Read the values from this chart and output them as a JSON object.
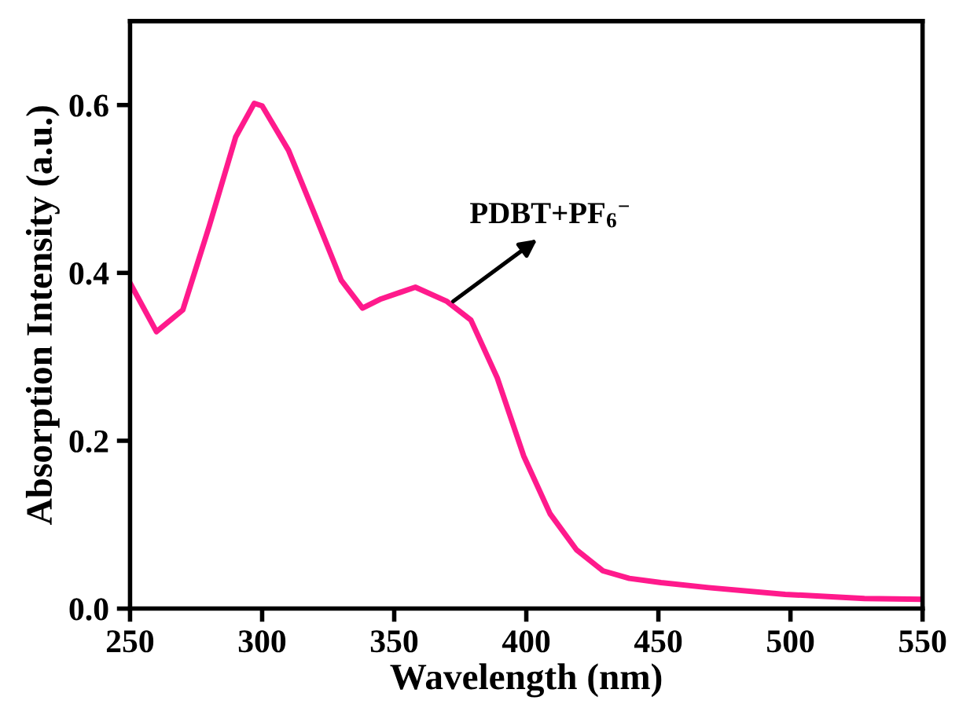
{
  "chart_data": {
    "type": "line",
    "xlabel": "Wavelength (nm)",
    "ylabel": "Absorption Intensity (a.u.)",
    "x": [
      250,
      260,
      270,
      280,
      290,
      297,
      300,
      310,
      320,
      330,
      338,
      345,
      358,
      370,
      379,
      389,
      399,
      409,
      419,
      429,
      439,
      451,
      469,
      498,
      528,
      550
    ],
    "series": [
      {
        "color": "#ff1a8c",
        "values": [
          0.388,
          0.33,
          0.356,
          0.456,
          0.562,
          0.602,
          0.599,
          0.546,
          0.469,
          0.391,
          0.358,
          0.369,
          0.383,
          0.366,
          0.344,
          0.275,
          0.182,
          0.113,
          0.07,
          0.045,
          0.036,
          0.031,
          0.025,
          0.017,
          0.012,
          0.011
        ]
      }
    ],
    "xlim": [
      250,
      550
    ],
    "xticks": [
      250,
      300,
      350,
      400,
      450,
      500,
      550
    ],
    "ylim": [
      0,
      0.7
    ],
    "yticks": [
      {
        "value": 0,
        "label": "0.0"
      },
      0.2,
      0.4,
      0.6
    ],
    "annotations": [
      {
        "text": "PDBT+PF$_{6}$$^{−}$",
        "x": 371,
        "y": 0.363
      }
    ],
    "grid": false,
    "legend": false,
    "marker": "none",
    "line_style": "solid"
  }
}
